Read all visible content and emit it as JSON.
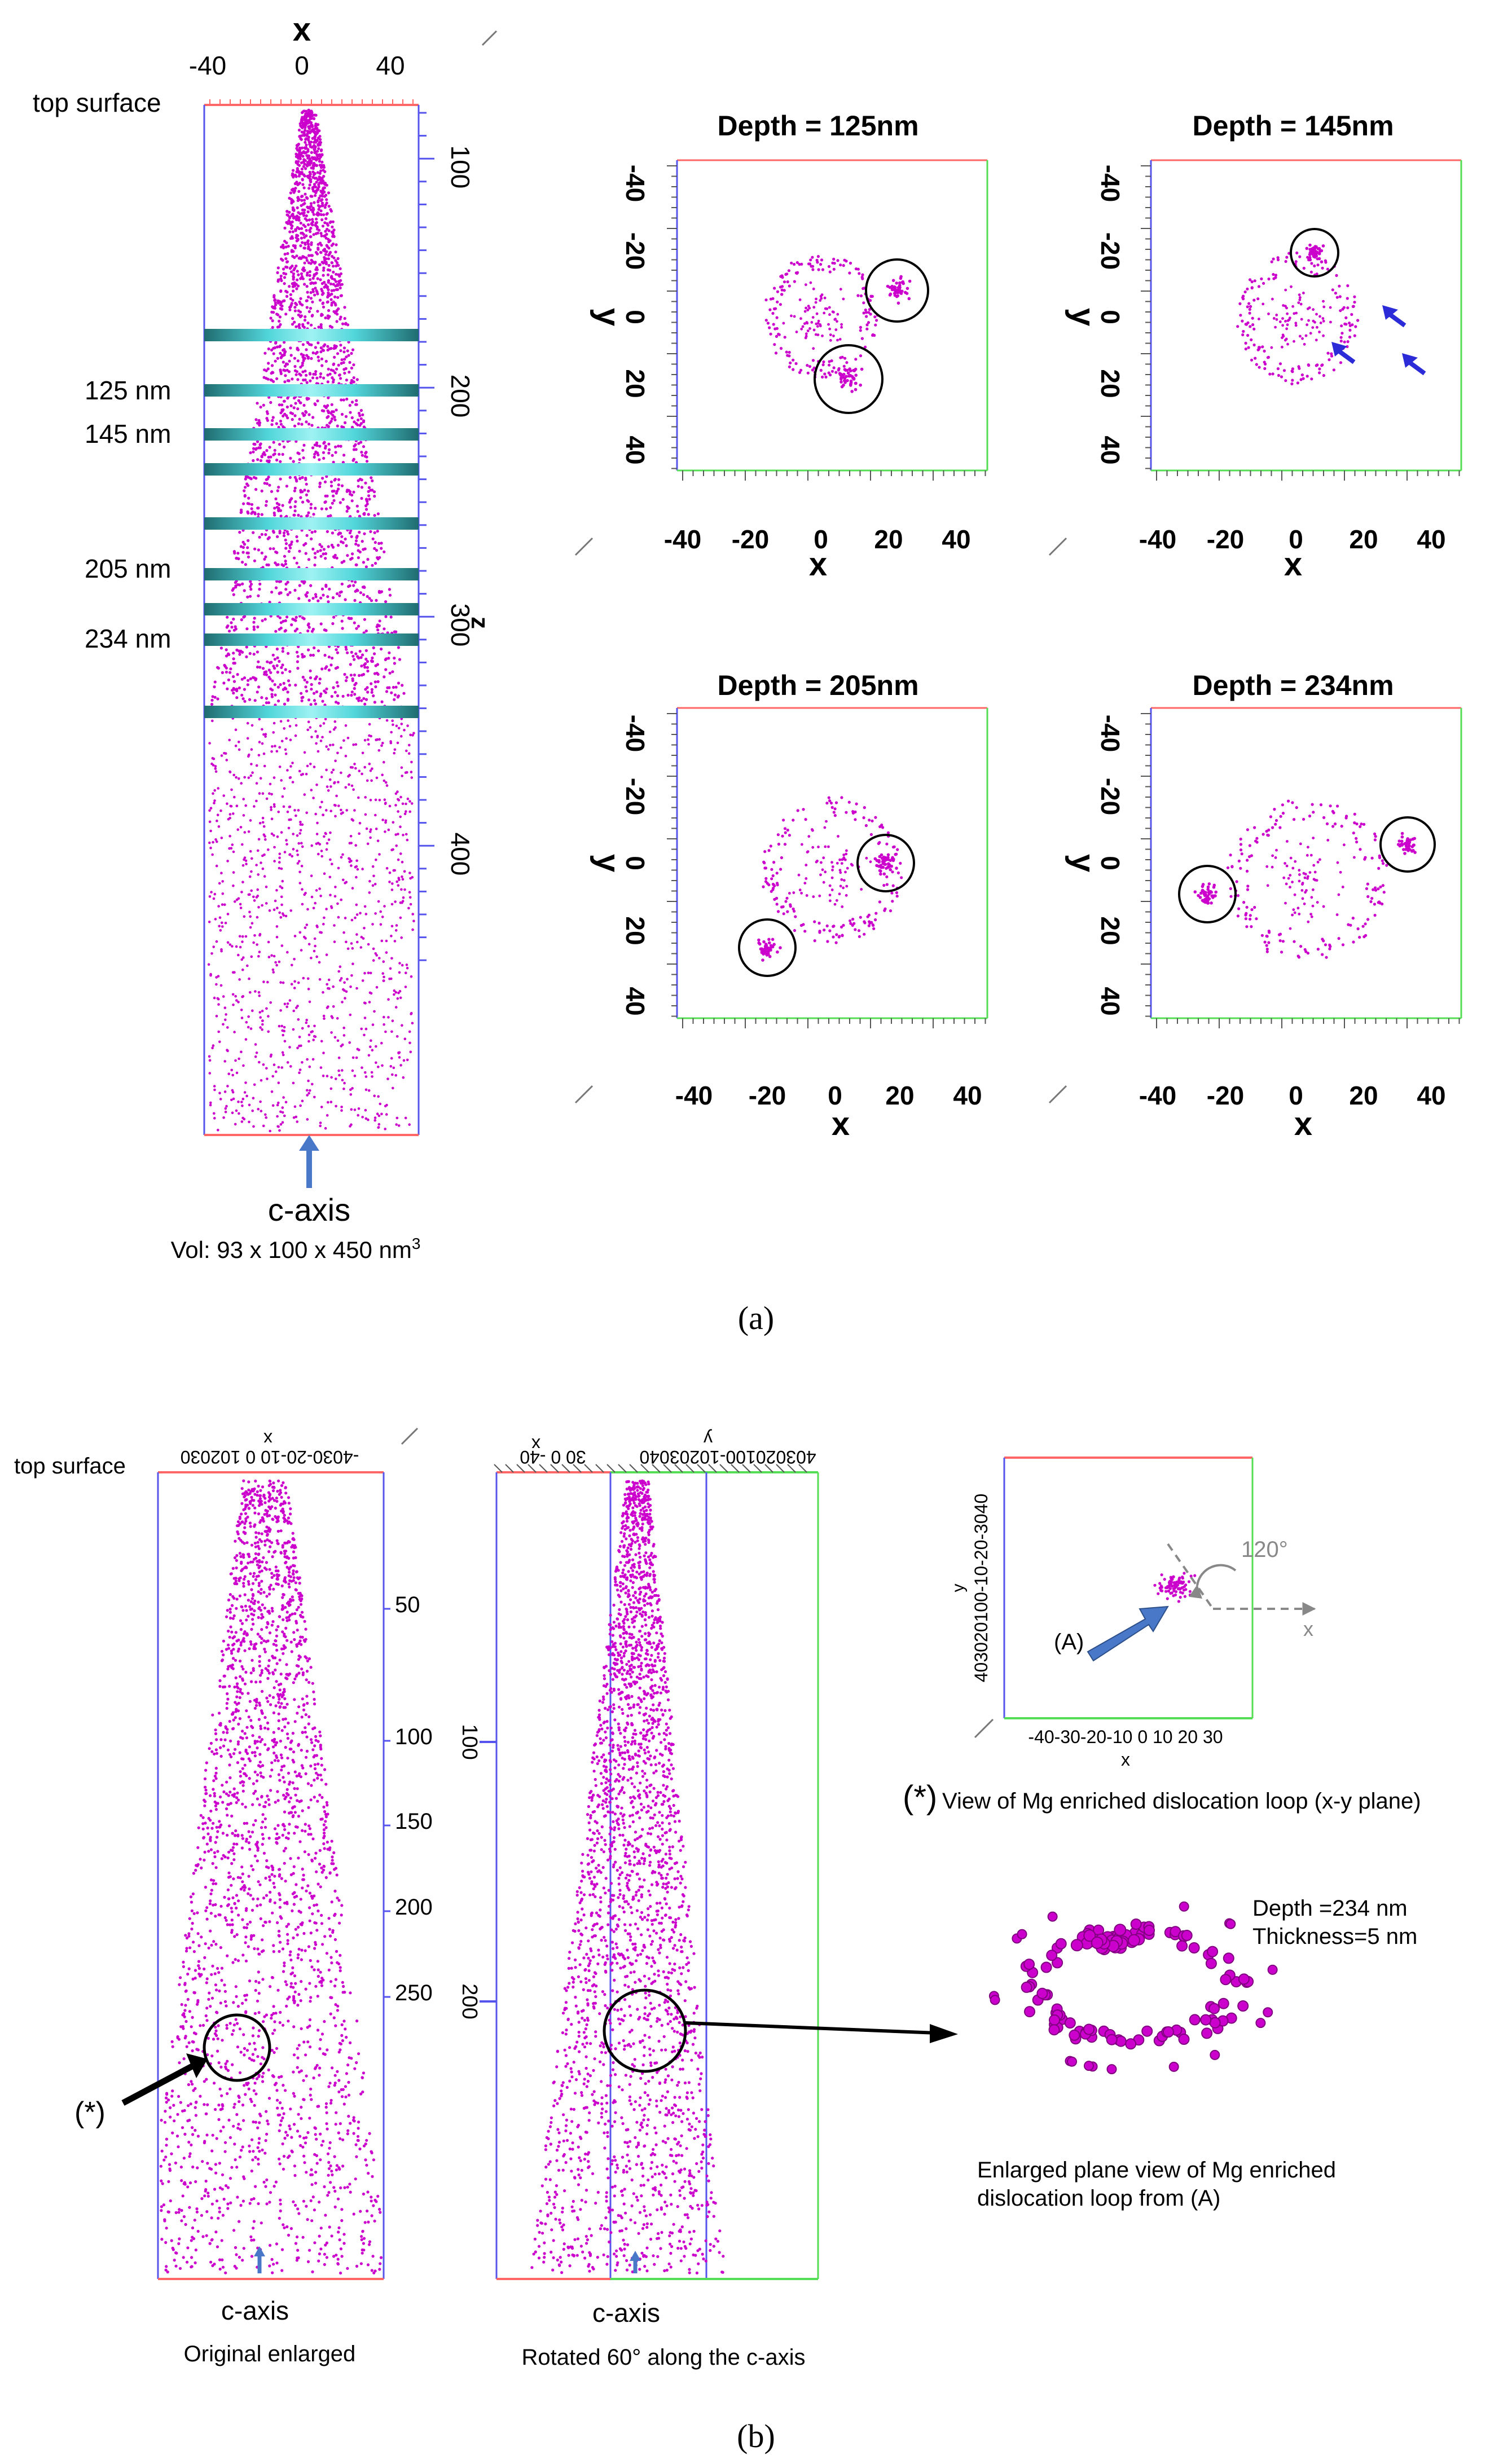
{
  "panel_a": {
    "label": "(a)",
    "column": {
      "x_axis_label": "x",
      "x_ticks": [
        "-40",
        "0",
        "40"
      ],
      "top_label": "top surface",
      "z_axis_label": "z",
      "z_ticks": [
        "100",
        "200",
        "300",
        "400"
      ],
      "slice_labels": [
        "125 nm",
        "145 nm",
        "205 nm",
        "234 nm"
      ],
      "bottom_label": "c-axis",
      "volume_prefix": "Vol: 93 x 100 x 450 nm",
      "volume_sup": "3"
    },
    "slices": [
      {
        "title": "Depth = 125nm",
        "xlabel": "x",
        "ylabel": "y",
        "x_ticks": [
          "-40",
          "-20",
          "0",
          "20",
          "40"
        ],
        "y_ticks": [
          "-40",
          "-20",
          "0",
          "20",
          "40"
        ]
      },
      {
        "title": "Depth = 145nm",
        "xlabel": "x",
        "ylabel": "y",
        "x_ticks": [
          "-40",
          "-20",
          "0",
          "20",
          "40"
        ],
        "y_ticks": [
          "-40",
          "-20",
          "0",
          "20",
          "40"
        ]
      },
      {
        "title": "Depth = 205nm",
        "xlabel": "x",
        "ylabel": "y",
        "x_ticks": [
          "-40",
          "-20",
          "0",
          "20",
          "40"
        ],
        "y_ticks": [
          "-40",
          "-20",
          "0",
          "20",
          "40"
        ]
      },
      {
        "title": "Depth = 234nm",
        "xlabel": "x",
        "ylabel": "y",
        "x_ticks": [
          "-40",
          "-20",
          "0",
          "20",
          "40"
        ],
        "y_ticks": [
          "-40",
          "-20",
          "0",
          "20",
          "40"
        ]
      }
    ]
  },
  "panel_b": {
    "label": "(b)",
    "original": {
      "top_label": "top surface",
      "x_axis_label": "x",
      "x_ticks_text": "-4030-20-10 0 102030",
      "z_ticks": [
        "50",
        "100",
        "150",
        "200",
        "250"
      ],
      "marker": "(*)",
      "bottom_label": "c-axis",
      "caption": "Original enlarged"
    },
    "rotated": {
      "x_axis_label": "x",
      "y_axis_label": "y",
      "x_ticks_text": "30  0  -40",
      "y_ticks_text": "403020100-10203040",
      "z_ticks": [
        "100",
        "200"
      ],
      "bottom_label": "c-axis",
      "caption": "Rotated 60° along the c-axis"
    },
    "xy_view": {
      "angle_label": "120°",
      "x_arrow_label": "x",
      "y_ticks_text": "403020100-10-20-3040",
      "x_ticks_text": "-40-30-20-10 0 10 20 30",
      "xlabel": "x",
      "ylabel": "y",
      "pointer_label": "(A)",
      "caption_mark": "(*)",
      "caption": "View of Mg enriched dislocation loop (x-y  plane)"
    },
    "enlarged": {
      "depth": "Depth =234 nm",
      "thickness": "Thickness=5 nm",
      "caption_line1": "Enlarged plane view of Mg enriched",
      "caption_line2": "dislocation loop from (A)"
    }
  },
  "colors": {
    "atoms": "#cc00cc",
    "box_top": "#ff6666",
    "box_side": "#5555ee",
    "box_green": "#55dd55",
    "slice_band": "#3cc8cc",
    "arrow_blue": "#4a78c8"
  }
}
